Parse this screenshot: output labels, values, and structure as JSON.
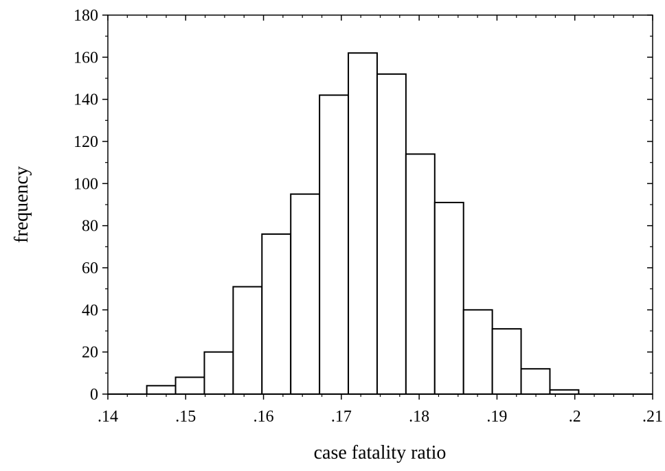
{
  "chart_data": {
    "type": "bar",
    "title": "",
    "xlabel": "case fatality ratio",
    "ylabel": "frequency",
    "xlim": [
      0.14,
      0.21
    ],
    "ylim": [
      0,
      180
    ],
    "bin_edges": [
      0.145,
      0.1487,
      0.1524,
      0.1561,
      0.1598,
      0.1635,
      0.1672,
      0.1709,
      0.1746,
      0.1783,
      0.182,
      0.1857,
      0.1894,
      0.1931,
      0.1968,
      0.2005
    ],
    "values": [
      4,
      8,
      20,
      51,
      76,
      95,
      142,
      162,
      152,
      114,
      91,
      40,
      31,
      12,
      2
    ],
    "x_ticks": [
      {
        "value": 0.14,
        "label": ".14"
      },
      {
        "value": 0.15,
        "label": ".15"
      },
      {
        "value": 0.16,
        "label": ".16"
      },
      {
        "value": 0.17,
        "label": ".17"
      },
      {
        "value": 0.18,
        "label": ".18"
      },
      {
        "value": 0.19,
        "label": ".19"
      },
      {
        "value": 0.2,
        "label": ".2"
      },
      {
        "value": 0.21,
        "label": ".21"
      }
    ],
    "y_ticks": [
      {
        "value": 0,
        "label": "0"
      },
      {
        "value": 20,
        "label": "20"
      },
      {
        "value": 40,
        "label": "40"
      },
      {
        "value": 60,
        "label": "60"
      },
      {
        "value": 80,
        "label": "80"
      },
      {
        "value": 100,
        "label": "100"
      },
      {
        "value": 120,
        "label": "120"
      },
      {
        "value": 140,
        "label": "140"
      },
      {
        "value": 160,
        "label": "160"
      },
      {
        "value": 180,
        "label": "180"
      }
    ],
    "grid": false,
    "legend": "none",
    "bar_fill": "#ffffff",
    "bar_stroke": "#000000"
  }
}
